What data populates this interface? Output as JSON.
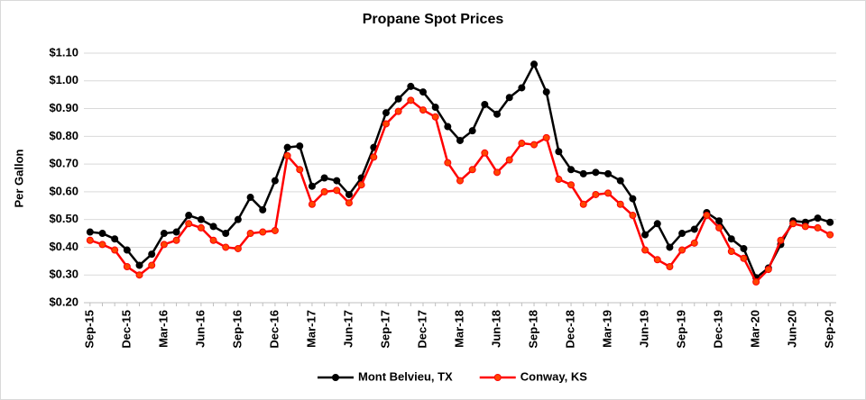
{
  "chart_data": {
    "type": "line",
    "title": "Propane Spot Prices",
    "y_label": "Per Gallon",
    "categories": [
      "Sep-15",
      null,
      null,
      "Dec-15",
      null,
      null,
      "Mar-16",
      null,
      null,
      "Jun-16",
      null,
      null,
      "Sep-16",
      null,
      null,
      "Dec-16",
      null,
      null,
      "Mar-17",
      null,
      null,
      "Jun-17",
      null,
      null,
      "Sep-17",
      null,
      null,
      "Dec-17",
      null,
      null,
      "Mar-18",
      null,
      null,
      "Jun-18",
      null,
      null,
      "Sep-18",
      null,
      null,
      "Dec-18",
      null,
      null,
      "Mar-19",
      null,
      null,
      "Jun-19",
      null,
      null,
      "Sep-19",
      null,
      null,
      "Dec-19",
      null,
      null,
      "Mar-20",
      null,
      null,
      "Jun-20",
      null,
      null,
      "Sep-20"
    ],
    "series": [
      {
        "name": "Mont Belvieu, TX",
        "color": "#000000",
        "values": [
          0.455,
          0.45,
          0.43,
          0.39,
          0.335,
          0.375,
          0.45,
          0.455,
          0.515,
          0.5,
          0.475,
          0.45,
          0.5,
          0.58,
          0.535,
          0.64,
          0.76,
          0.765,
          0.62,
          0.65,
          0.64,
          0.59,
          0.65,
          0.76,
          0.885,
          0.935,
          0.98,
          0.96,
          0.905,
          0.835,
          0.785,
          0.82,
          0.915,
          0.88,
          0.94,
          0.975,
          1.06,
          0.96,
          0.745,
          0.68,
          0.665,
          0.67,
          0.665,
          0.64,
          0.575,
          0.445,
          0.485,
          0.4,
          0.45,
          0.465,
          0.525,
          0.495,
          0.43,
          0.395,
          0.29,
          0.325,
          0.41,
          0.495,
          0.49,
          0.505,
          0.49
        ]
      },
      {
        "name": "Conway, KS",
        "color": "#ff0000",
        "values": [
          0.425,
          0.41,
          0.39,
          0.33,
          0.3,
          0.335,
          0.41,
          0.425,
          0.485,
          0.47,
          0.425,
          0.4,
          0.395,
          0.45,
          0.455,
          0.46,
          0.73,
          0.68,
          0.555,
          0.6,
          0.605,
          0.56,
          0.625,
          0.725,
          0.845,
          0.89,
          0.93,
          0.895,
          0.87,
          0.705,
          0.64,
          0.68,
          0.74,
          0.67,
          0.715,
          0.775,
          0.77,
          0.795,
          0.645,
          0.625,
          0.555,
          0.59,
          0.595,
          0.555,
          0.515,
          0.39,
          0.355,
          0.33,
          0.39,
          0.415,
          0.515,
          0.47,
          0.385,
          0.36,
          0.275,
          0.32,
          0.425,
          0.485,
          0.475,
          0.47,
          0.445
        ]
      }
    ],
    "ylim": [
      0.2,
      1.1
    ],
    "yticks": [
      {
        "value": 0.2,
        "label": "$0.20"
      },
      {
        "value": 0.3,
        "label": "$0.30"
      },
      {
        "value": 0.4,
        "label": "$0.40"
      },
      {
        "value": 0.5,
        "label": "$0.50"
      },
      {
        "value": 0.6,
        "label": "$0.60"
      },
      {
        "value": 0.7,
        "label": "$0.70"
      },
      {
        "value": 0.8,
        "label": "$0.80"
      },
      {
        "value": 0.9,
        "label": "$0.90"
      },
      {
        "value": 1.0,
        "label": "$1.00"
      },
      {
        "value": 1.1,
        "label": "$1.10"
      }
    ],
    "grid": true,
    "legend": "bottom"
  }
}
